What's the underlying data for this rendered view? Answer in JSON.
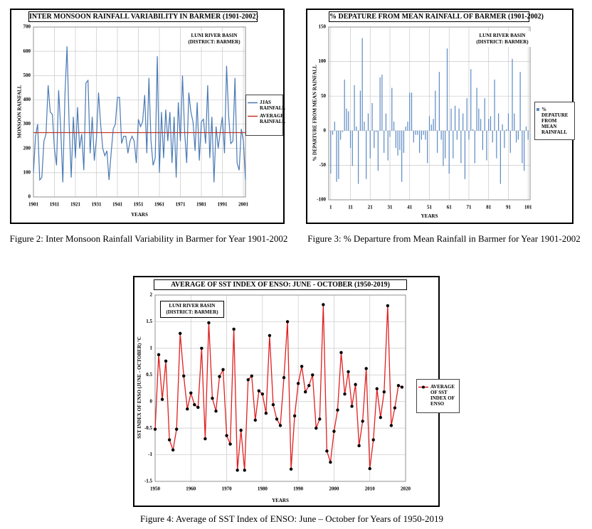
{
  "chart_data": [
    {
      "type": "line",
      "title": "INTER MONSOON RAINFALL VARIABILITY IN BARMER (1901-2002)",
      "annotation": "LUNI RIVER BASIN (DISTRICT: BARMER)",
      "xlabel": "YEARS",
      "ylabel": "MONSOON RAINFALL",
      "x": [
        1901,
        1902,
        1903,
        1904,
        1905,
        1906,
        1907,
        1908,
        1909,
        1910,
        1911,
        1912,
        1913,
        1914,
        1915,
        1916,
        1917,
        1918,
        1919,
        1920,
        1921,
        1922,
        1923,
        1924,
        1925,
        1926,
        1927,
        1928,
        1929,
        1930,
        1931,
        1932,
        1933,
        1934,
        1935,
        1936,
        1937,
        1938,
        1939,
        1940,
        1941,
        1942,
        1943,
        1944,
        1945,
        1946,
        1947,
        1948,
        1949,
        1950,
        1951,
        1952,
        1953,
        1954,
        1955,
        1956,
        1957,
        1958,
        1959,
        1960,
        1961,
        1962,
        1963,
        1964,
        1965,
        1966,
        1967,
        1968,
        1969,
        1970,
        1971,
        1972,
        1973,
        1974,
        1975,
        1976,
        1977,
        1978,
        1979,
        1980,
        1981,
        1982,
        1983,
        1984,
        1985,
        1986,
        1987,
        1988,
        1989,
        1990,
        1991,
        1992,
        1993,
        1994,
        1995,
        1996,
        1997,
        1998,
        1999,
        2000,
        2001,
        2002
      ],
      "series": [
        {
          "name": "JJAS RAINFALL",
          "color": "#4a7ab5",
          "values": [
            100,
            250,
            300,
            70,
            80,
            230,
            260,
            460,
            350,
            340,
            200,
            130,
            440,
            280,
            60,
            420,
            620,
            300,
            80,
            330,
            160,
            370,
            200,
            260,
            110,
            470,
            480,
            180,
            330,
            150,
            240,
            430,
            300,
            200,
            170,
            190,
            70,
            180,
            280,
            300,
            410,
            410,
            220,
            250,
            250,
            180,
            230,
            250,
            230,
            140,
            320,
            290,
            310,
            420,
            180,
            490,
            230,
            130,
            160,
            580,
            100,
            350,
            160,
            360,
            230,
            350,
            140,
            330,
            80,
            390,
            230,
            500,
            270,
            140,
            430,
            350,
            310,
            190,
            390,
            150,
            310,
            320,
            220,
            460,
            160,
            330,
            60,
            290,
            200,
            270,
            330,
            180,
            540,
            330,
            220,
            230,
            490,
            140,
            110,
            280,
            230,
            70
          ]
        }
      ],
      "reference_line": {
        "name": "AVERAGE RAINFALL",
        "value": 265,
        "color": "#c0392b"
      },
      "xlim": [
        1901,
        2002
      ],
      "ylim": [
        0,
        700
      ],
      "xticks": [
        1901,
        1911,
        1921,
        1931,
        1941,
        1951,
        1961,
        1971,
        1981,
        1991,
        2001
      ],
      "yticks": [
        0,
        100,
        200,
        300,
        400,
        500,
        600,
        700
      ],
      "grid": true,
      "legend": "right"
    },
    {
      "type": "bar",
      "title": "% DEPATURE FROM MEAN RAINFALL OF BARMER (1901-2002)",
      "annotation": "LUNI RIVER BASIN (DISTRICT: BARMER)",
      "xlabel": "YEARS",
      "ylabel": "% DEPARTURE FROM MEAN RAINFALL",
      "x": [
        1,
        2,
        3,
        4,
        5,
        6,
        7,
        8,
        9,
        10,
        11,
        12,
        13,
        14,
        15,
        16,
        17,
        18,
        19,
        20,
        21,
        22,
        23,
        24,
        25,
        26,
        27,
        28,
        29,
        30,
        31,
        32,
        33,
        34,
        35,
        36,
        37,
        38,
        39,
        40,
        41,
        42,
        43,
        44,
        45,
        46,
        47,
        48,
        49,
        50,
        51,
        52,
        53,
        54,
        55,
        56,
        57,
        58,
        59,
        60,
        61,
        62,
        63,
        64,
        65,
        66,
        67,
        68,
        69,
        70,
        71,
        72,
        73,
        74,
        75,
        76,
        77,
        78,
        79,
        80,
        81,
        82,
        83,
        84,
        85,
        86,
        87,
        88,
        89,
        90,
        91,
        92,
        93,
        94,
        95,
        96,
        97,
        98,
        99,
        100,
        101
      ],
      "series": [
        {
          "name": "% DEPATURE FROM MEAN RAINFALL",
          "color": "#5b8ac4",
          "values": [
            -62,
            -6,
            13,
            -74,
            -70,
            -13,
            -2,
            74,
            32,
            28,
            -25,
            -51,
            66,
            6,
            -77,
            58,
            134,
            13,
            -70,
            25,
            -40,
            40,
            -25,
            -2,
            -58,
            77,
            81,
            -32,
            25,
            -43,
            -9,
            62,
            13,
            -25,
            -36,
            -28,
            -74,
            -32,
            6,
            13,
            55,
            55,
            -17,
            -6,
            -6,
            -32,
            -13,
            -6,
            -13,
            -47,
            21,
            9,
            17,
            58,
            -32,
            85,
            -13,
            -51,
            -40,
            119,
            -62,
            32,
            -40,
            36,
            -13,
            32,
            -47,
            25,
            -70,
            47,
            -13,
            89,
            2,
            -47,
            62,
            32,
            17,
            -28,
            47,
            -43,
            17,
            21,
            -17,
            74,
            -40,
            25,
            -77,
            9,
            -25,
            2,
            25,
            -32,
            104,
            25,
            -17,
            -13,
            85,
            -47,
            -58,
            6,
            -13
          ]
        }
      ],
      "xlim": [
        0,
        102
      ],
      "ylim": [
        -100,
        150
      ],
      "xticks": [
        1,
        11,
        21,
        31,
        41,
        51,
        61,
        71,
        81,
        91,
        101
      ],
      "yticks": [
        -100,
        -50,
        0,
        50,
        100,
        150
      ],
      "grid": true,
      "legend": "right"
    },
    {
      "type": "line",
      "markers": true,
      "title": "AVERAGE OF SST INDEX OF ENSO: JUNE - OCTOBER (1950-2019)",
      "annotation": "LUNI RIVER BASIN (DISTRICT: BARMER)",
      "xlabel": "YEARS",
      "ylabel": "SST INDEX OF ENSO (JUNE - OCTOBER) °C",
      "x": [
        1950,
        1951,
        1952,
        1953,
        1954,
        1955,
        1956,
        1957,
        1958,
        1959,
        1960,
        1961,
        1962,
        1963,
        1964,
        1965,
        1966,
        1967,
        1968,
        1969,
        1970,
        1971,
        1972,
        1973,
        1974,
        1975,
        1976,
        1977,
        1978,
        1979,
        1980,
        1981,
        1982,
        1983,
        1984,
        1985,
        1986,
        1987,
        1988,
        1989,
        1990,
        1991,
        1992,
        1993,
        1994,
        1995,
        1996,
        1997,
        1998,
        1999,
        2000,
        2001,
        2002,
        2003,
        2004,
        2005,
        2006,
        2007,
        2008,
        2009,
        2010,
        2011,
        2012,
        2013,
        2014,
        2015,
        2016,
        2017,
        2018,
        2019
      ],
      "series": [
        {
          "name": "AVERAGE OF SST INDEX OF ENSO",
          "color": "#e02020",
          "marker_color": "#000000",
          "values": [
            -0.52,
            0.88,
            0.04,
            0.76,
            -0.72,
            -0.91,
            -0.52,
            1.28,
            0.48,
            -0.14,
            0.16,
            -0.06,
            -0.11,
            1.0,
            -0.7,
            1.48,
            0.06,
            -0.18,
            0.47,
            0.6,
            -0.64,
            -0.8,
            1.36,
            -1.29,
            -0.54,
            -1.29,
            0.41,
            0.48,
            -0.35,
            0.2,
            0.14,
            -0.22,
            1.24,
            -0.06,
            -0.33,
            -0.45,
            0.45,
            1.5,
            -1.27,
            -0.27,
            0.34,
            0.66,
            0.18,
            0.3,
            0.5,
            -0.5,
            -0.33,
            1.82,
            -0.93,
            -1.14,
            -0.56,
            -0.16,
            0.92,
            0.14,
            0.56,
            -0.09,
            0.32,
            -0.83,
            -0.37,
            0.62,
            -1.26,
            -0.72,
            0.24,
            -0.3,
            0.18,
            1.8,
            -0.45,
            -0.12,
            0.3,
            0.27
          ]
        }
      ],
      "xlim": [
        1950,
        2020
      ],
      "ylim": [
        -1.5,
        2
      ],
      "xticks": [
        1950,
        1960,
        1970,
        1980,
        1990,
        2000,
        2010,
        2020
      ],
      "yticks": [
        -1.5,
        -1,
        -0.5,
        0,
        0.5,
        1,
        1.5,
        2
      ],
      "grid": true,
      "legend": "right"
    }
  ],
  "captions": [
    "Figure 2: Inter Monsoon Rainfall Variability in Barmer for Year 1901-2002",
    "Figure 3: % Departure from Mean Rainfall in Barmer for Year 1901-2002",
    "Figure 4: Average of SST Index of ENSO: June – October for Years of 1950-2019"
  ]
}
